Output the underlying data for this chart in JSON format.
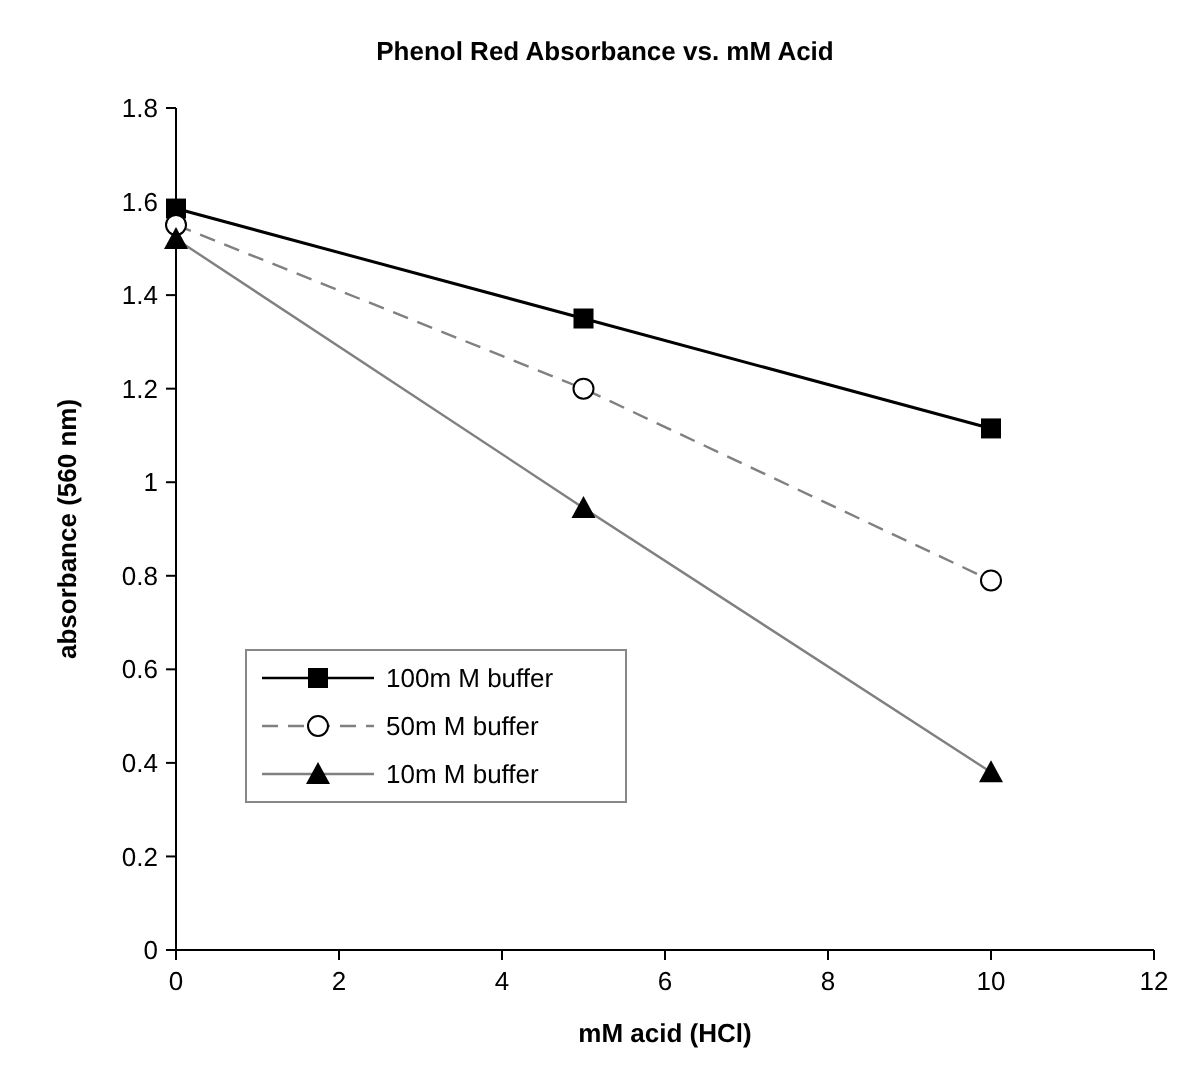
{
  "chart_data": {
    "type": "line",
    "title": "Phenol Red Absorbance vs. mM Acid",
    "xlabel": "mM acid (HCl)",
    "ylabel": "absorbance (560 nm)",
    "x": [
      0,
      5,
      10
    ],
    "series": [
      {
        "name": "100m M buffer",
        "color": "#000000",
        "values": [
          1.585,
          1.35,
          1.115
        ],
        "marker": "square",
        "line_style": "solid"
      },
      {
        "name": "50m M buffer",
        "color": "#808080",
        "values": [
          1.55,
          1.2,
          0.79
        ],
        "marker": "circle",
        "line_style": "dashed"
      },
      {
        "name": "10m M buffer",
        "color": "#808080",
        "values": [
          1.52,
          0.945,
          0.38
        ],
        "marker": "triangle",
        "line_style": "solid"
      }
    ],
    "xlim": [
      0,
      12
    ],
    "xticks": [
      0,
      2,
      4,
      6,
      8,
      10,
      12
    ],
    "ylim": [
      0,
      1.8
    ],
    "yticks": [
      0,
      0.2,
      0.4,
      0.6,
      0.8,
      1,
      1.2,
      1.4,
      1.6,
      1.8
    ],
    "grid": false,
    "legend": "bottom left"
  }
}
